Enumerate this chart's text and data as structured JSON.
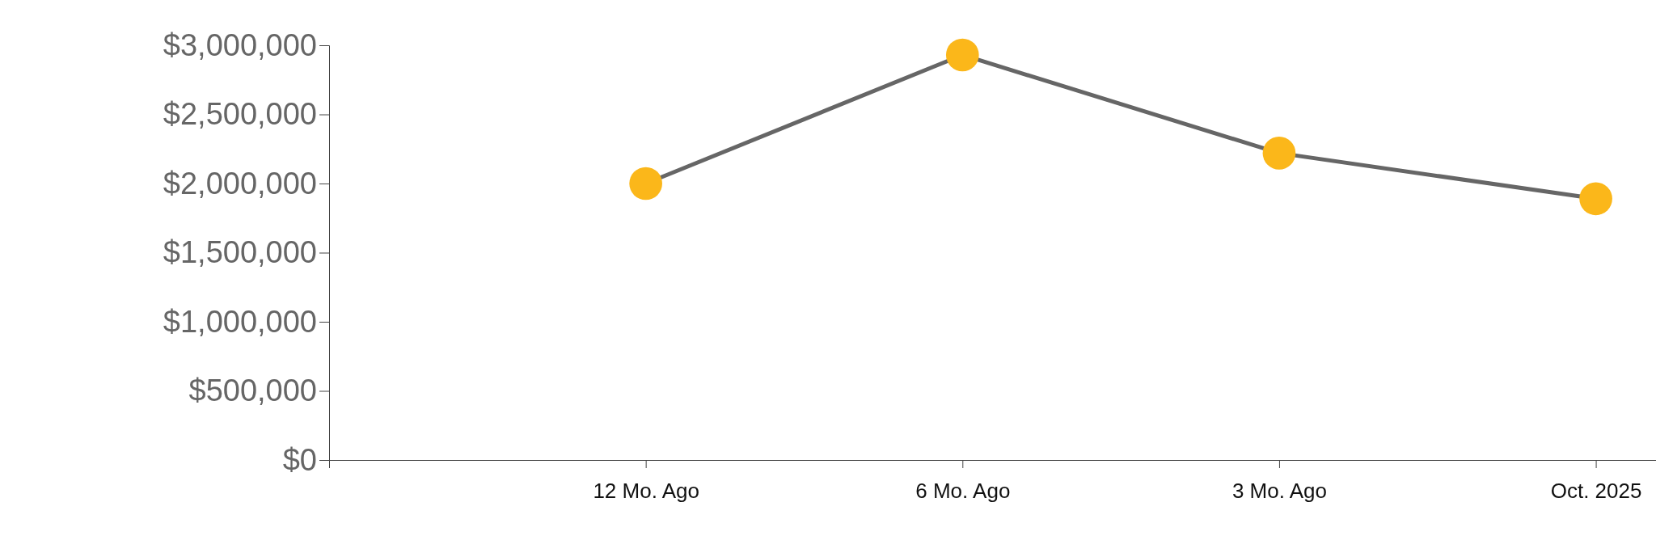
{
  "chart_data": {
    "type": "line",
    "categories": [
      null,
      "12 Mo. Ago",
      "6 Mo. Ago",
      "3 Mo. Ago",
      "Oct. 2025"
    ],
    "series": [
      {
        "color": "#fbb71a",
        "values": [
          null,
          2000000,
          2930000,
          2220000,
          1890000
        ]
      }
    ],
    "ylim": [
      0,
      3000000
    ],
    "yticks": [
      {
        "value": 0,
        "label": "$0"
      },
      {
        "value": 500000,
        "label": "$500,000"
      },
      {
        "value": 1000000,
        "label": "$1,000,000"
      },
      {
        "value": 1500000,
        "label": "$1,500,000"
      },
      {
        "value": 2000000,
        "label": "$2,000,000"
      },
      {
        "value": 2500000,
        "label": "$2,500,000"
      },
      {
        "value": 3000000,
        "label": "$3,000,000"
      }
    ],
    "marker": "circle",
    "grid": false,
    "legend": false
  }
}
